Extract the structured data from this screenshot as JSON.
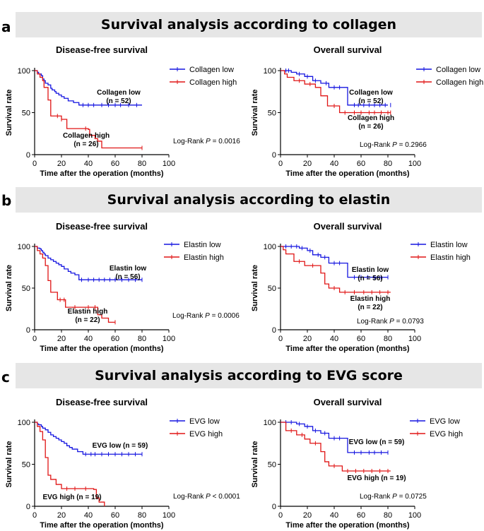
{
  "panels": [
    {
      "letter": "a",
      "heading": "Survival analysis according to collagen"
    },
    {
      "letter": "b",
      "heading": "Survival analysis according to elastin"
    },
    {
      "letter": "c",
      "heading": "Survival analysis according to EVG score"
    }
  ],
  "axis": {
    "xlabel": "Time after the operation (months)",
    "ylabel": "Survival rate",
    "xticks": [
      0,
      20,
      40,
      60,
      80,
      100
    ],
    "yticks": [
      0,
      50,
      100
    ]
  },
  "colors": {
    "low": "#1515e0",
    "high": "#e01515"
  },
  "chart_data": [
    {
      "type": "line",
      "title": "Disease-free survival",
      "xlim": [
        0,
        100
      ],
      "ylim": [
        0,
        100
      ],
      "legend": [
        "Collagen low",
        "Collagen high"
      ],
      "annot_low": [
        "Collagen low",
        "(n = 52)"
      ],
      "annot_high": [
        "Collagen high",
        "(n = 26)"
      ],
      "logrank": {
        "text": "Log-Rank ",
        "p": "P",
        "val": " = 0.0016"
      },
      "series": [
        {
          "name": "Collagen low",
          "x": [
            0,
            2,
            3,
            5,
            6,
            7,
            8,
            10,
            12,
            13,
            15,
            16,
            18,
            20,
            22,
            25,
            29,
            33,
            80
          ],
          "y": [
            100,
            98,
            96,
            94,
            90,
            88,
            85,
            83,
            79,
            77,
            75,
            73,
            71,
            69,
            67,
            64,
            62,
            59,
            59
          ],
          "censor": [
            [
              36,
              59
            ],
            [
              40,
              59
            ],
            [
              44,
              59
            ],
            [
              50,
              59
            ],
            [
              55,
              59
            ],
            [
              60,
              59
            ],
            [
              64,
              59
            ],
            [
              70,
              59
            ],
            [
              76,
              59
            ]
          ]
        },
        {
          "name": "Collagen high",
          "x": [
            0,
            2,
            4,
            6,
            7,
            10,
            12,
            20,
            24,
            40,
            41,
            45,
            47,
            50,
            80
          ],
          "y": [
            100,
            96,
            92,
            88,
            80,
            65,
            46,
            42,
            31,
            30,
            23,
            19,
            16,
            8,
            8
          ],
          "censor": [
            [
              17,
              46
            ],
            [
              20,
              42
            ],
            [
              38,
              31
            ],
            [
              80,
              8
            ]
          ]
        }
      ]
    },
    {
      "type": "line",
      "title": "Overall survival",
      "xlim": [
        0,
        100
      ],
      "ylim": [
        0,
        100
      ],
      "legend": [
        "Collagen low",
        "Collagen high"
      ],
      "annot_low": [
        "Collagen low",
        "(n = 52)"
      ],
      "annot_high": [
        "Collagen high",
        "(n = 26)"
      ],
      "logrank": {
        "text": "Log-Rank ",
        "p": "P",
        "val": " = 0.2966"
      },
      "series": [
        {
          "name": "Collagen low",
          "x": [
            0,
            8,
            12,
            18,
            24,
            30,
            36,
            50,
            80
          ],
          "y": [
            100,
            98,
            96,
            93,
            88,
            85,
            80,
            59,
            59
          ],
          "censor": [
            [
              4,
              100
            ],
            [
              6,
              100
            ],
            [
              14,
              96
            ],
            [
              20,
              93
            ],
            [
              26,
              88
            ],
            [
              34,
              85
            ],
            [
              40,
              80
            ],
            [
              44,
              80
            ],
            [
              55,
              59
            ],
            [
              58,
              59
            ],
            [
              62,
              59
            ],
            [
              66,
              59
            ],
            [
              70,
              59
            ],
            [
              74,
              59
            ],
            [
              78,
              59
            ],
            [
              82,
              59
            ]
          ]
        },
        {
          "name": "Collagen high",
          "x": [
            0,
            3,
            5,
            10,
            18,
            26,
            30,
            35,
            44,
            82
          ],
          "y": [
            100,
            96,
            92,
            88,
            84,
            80,
            70,
            58,
            50,
            50
          ],
          "censor": [
            [
              14,
              88
            ],
            [
              22,
              84
            ],
            [
              40,
              58
            ],
            [
              48,
              50
            ],
            [
              55,
              50
            ],
            [
              60,
              50
            ],
            [
              66,
              50
            ],
            [
              70,
              50
            ],
            [
              75,
              50
            ],
            [
              80,
              50
            ],
            [
              82,
              50
            ]
          ]
        }
      ]
    },
    {
      "type": "line",
      "title": "Disease-free survival",
      "xlim": [
        0,
        100
      ],
      "ylim": [
        0,
        100
      ],
      "legend": [
        "Elastin low",
        "Elastin high"
      ],
      "annot_low": [
        "Elastin low",
        "(n = 56)"
      ],
      "annot_high": [
        "Elastin high",
        "(n = 22)"
      ],
      "logrank": {
        "text": "Log-Rank ",
        "p": "P",
        "val": " = 0.0006"
      },
      "series": [
        {
          "name": "Elastin low",
          "x": [
            0,
            2,
            4,
            5,
            6,
            7,
            8,
            10,
            12,
            14,
            16,
            18,
            20,
            22,
            25,
            27,
            30,
            33,
            80
          ],
          "y": [
            100,
            98,
            97,
            95,
            93,
            91,
            89,
            86,
            84,
            82,
            80,
            78,
            76,
            73,
            70,
            68,
            66,
            60,
            60
          ],
          "censor": [
            [
              35,
              60
            ],
            [
              40,
              60
            ],
            [
              44,
              60
            ],
            [
              48,
              60
            ],
            [
              52,
              60
            ],
            [
              56,
              60
            ],
            [
              60,
              60
            ],
            [
              65,
              60
            ],
            [
              70,
              60
            ],
            [
              75,
              60
            ],
            [
              80,
              60
            ]
          ]
        },
        {
          "name": "Elastin high",
          "x": [
            0,
            2,
            4,
            6,
            8,
            10,
            12,
            17,
            23,
            47,
            50,
            55,
            60
          ],
          "y": [
            100,
            95,
            91,
            86,
            77,
            59,
            45,
            36,
            27,
            18,
            14,
            9,
            9
          ],
          "censor": [
            [
              19,
              36
            ],
            [
              22,
              36
            ],
            [
              30,
              27
            ],
            [
              40,
              27
            ],
            [
              45,
              27
            ],
            [
              60,
              9
            ]
          ]
        }
      ]
    },
    {
      "type": "line",
      "title": "Overall survival",
      "xlim": [
        0,
        100
      ],
      "ylim": [
        0,
        100
      ],
      "legend": [
        "Elastin low",
        "Elastin high"
      ],
      "annot_low": [
        "Elastin low",
        "(n = 56)"
      ],
      "annot_high": [
        "Elastin high",
        "(n = 22)"
      ],
      "logrank": {
        "text": "Log-Rank ",
        "p": "P",
        "val": " = 0.0793"
      },
      "series": [
        {
          "name": "Elastin low",
          "x": [
            0,
            14,
            20,
            24,
            30,
            36,
            50,
            80
          ],
          "y": [
            100,
            98,
            95,
            90,
            87,
            80,
            63,
            63
          ],
          "censor": [
            [
              4,
              100
            ],
            [
              8,
              100
            ],
            [
              12,
              100
            ],
            [
              16,
              98
            ],
            [
              22,
              95
            ],
            [
              28,
              90
            ],
            [
              33,
              87
            ],
            [
              40,
              80
            ],
            [
              44,
              80
            ],
            [
              55,
              63
            ],
            [
              60,
              63
            ],
            [
              65,
              63
            ],
            [
              70,
              63
            ],
            [
              75,
              63
            ],
            [
              80,
              63
            ]
          ]
        },
        {
          "name": "Elastin high",
          "x": [
            0,
            2,
            4,
            10,
            18,
            30,
            33,
            36,
            44,
            82
          ],
          "y": [
            100,
            96,
            91,
            82,
            77,
            68,
            55,
            50,
            45,
            45
          ],
          "censor": [
            [
              14,
              82
            ],
            [
              24,
              77
            ],
            [
              40,
              50
            ],
            [
              48,
              45
            ],
            [
              55,
              45
            ],
            [
              62,
              45
            ],
            [
              68,
              45
            ],
            [
              74,
              45
            ],
            [
              80,
              45
            ]
          ]
        }
      ]
    },
    {
      "type": "line",
      "title": "Disease-free survival",
      "xlim": [
        0,
        100
      ],
      "ylim": [
        0,
        100
      ],
      "legend": [
        "EVG low",
        "EVG high"
      ],
      "annot_low": [
        "EVG low (n = 59)"
      ],
      "annot_high": [
        "EVG high (n = 19)"
      ],
      "logrank": {
        "text": "Log-Rank ",
        "p": "P",
        "val": " < 0.0001"
      },
      "series": [
        {
          "name": "EVG low",
          "x": [
            0,
            2,
            3,
            5,
            6,
            8,
            10,
            12,
            14,
            16,
            18,
            20,
            22,
            24,
            26,
            28,
            32,
            36,
            80
          ],
          "y": [
            100,
            98,
            97,
            95,
            93,
            91,
            88,
            85,
            83,
            81,
            79,
            77,
            75,
            72,
            70,
            68,
            65,
            62,
            62
          ],
          "censor": [
            [
              38,
              62
            ],
            [
              42,
              62
            ],
            [
              45,
              62
            ],
            [
              50,
              62
            ],
            [
              55,
              62
            ],
            [
              60,
              62
            ],
            [
              65,
              62
            ],
            [
              70,
              62
            ],
            [
              75,
              62
            ],
            [
              80,
              62
            ]
          ]
        },
        {
          "name": "EVG high",
          "x": [
            0,
            2,
            4,
            6,
            8,
            10,
            12,
            16,
            20,
            44,
            46,
            48,
            52
          ],
          "y": [
            100,
            95,
            89,
            79,
            58,
            37,
            32,
            26,
            21,
            20,
            10,
            5,
            0
          ],
          "censor": [
            [
              24,
              21
            ],
            [
              30,
              21
            ],
            [
              38,
              21
            ]
          ]
        }
      ]
    },
    {
      "type": "line",
      "title": "Overall survival",
      "xlim": [
        0,
        100
      ],
      "ylim": [
        0,
        100
      ],
      "legend": [
        "EVG low",
        "EVG high"
      ],
      "annot_low": [
        "EVG low (n = 59)"
      ],
      "annot_high": [
        "EVG high (n = 19)"
      ],
      "logrank": {
        "text": "Log-Rank ",
        "p": "P",
        "val": " = 0.0725"
      },
      "series": [
        {
          "name": "EVG low",
          "x": [
            0,
            12,
            18,
            24,
            30,
            36,
            50,
            80
          ],
          "y": [
            100,
            98,
            95,
            90,
            87,
            81,
            64,
            64
          ],
          "censor": [
            [
              4,
              100
            ],
            [
              8,
              100
            ],
            [
              14,
              98
            ],
            [
              20,
              95
            ],
            [
              26,
              90
            ],
            [
              33,
              87
            ],
            [
              40,
              81
            ],
            [
              44,
              81
            ],
            [
              55,
              64
            ],
            [
              60,
              64
            ],
            [
              66,
              64
            ],
            [
              70,
              64
            ],
            [
              75,
              64
            ],
            [
              80,
              64
            ]
          ]
        },
        {
          "name": "EVG high",
          "x": [
            0,
            4,
            12,
            18,
            22,
            30,
            33,
            36,
            46,
            82
          ],
          "y": [
            100,
            90,
            85,
            80,
            75,
            65,
            53,
            48,
            42,
            42
          ],
          "censor": [
            [
              8,
              90
            ],
            [
              16,
              85
            ],
            [
              26,
              75
            ],
            [
              40,
              48
            ],
            [
              50,
              42
            ],
            [
              56,
              42
            ],
            [
              62,
              42
            ],
            [
              68,
              42
            ],
            [
              74,
              42
            ],
            [
              80,
              42
            ]
          ]
        }
      ]
    }
  ]
}
